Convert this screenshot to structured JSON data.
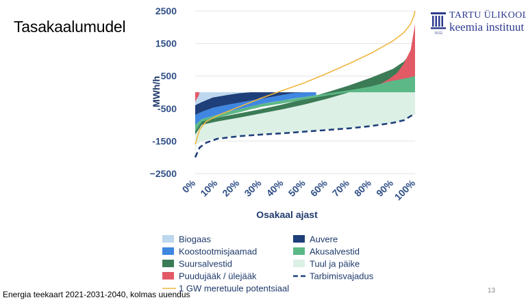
{
  "slide": {
    "title": "Tasakaalumudel",
    "footer_source": "Energia teekaart 2021-2031-2040, kolmas uuendus",
    "page_number": "13"
  },
  "logo": {
    "line1": "TARTU ÜLIKOOL",
    "line2": "keemia instituut",
    "year": "1632",
    "icon": "university-building-icon",
    "color": "#2d3a8c"
  },
  "chart_data": {
    "type": "area",
    "xlabel": "Osakaal ajast",
    "ylabel": "MWh/h",
    "ylim": [
      -2500,
      2500
    ],
    "xlim": [
      0,
      100
    ],
    "yticks": [
      2500,
      1500,
      500,
      -500,
      -1500,
      -2500
    ],
    "ytick_labels": [
      "2500",
      "1500",
      "500",
      "-500",
      "-1500",
      "−2500"
    ],
    "xticks": [
      0,
      10,
      20,
      30,
      40,
      50,
      60,
      70,
      80,
      90,
      100
    ],
    "xtick_labels": [
      "0%",
      "10%",
      "20%",
      "30%",
      "40%",
      "50%",
      "60%",
      "70%",
      "80%",
      "90%",
      "100%"
    ],
    "grid": "horizontal",
    "legend_position": "bottom",
    "legend": [
      {
        "key": "biogaas",
        "label": "Biogaas",
        "color": "#bdd7ee",
        "kind": "box"
      },
      {
        "key": "auvere",
        "label": "Auvere",
        "color": "#1f3f7a",
        "kind": "box"
      },
      {
        "key": "koostootmisjaamad",
        "label": "Koostootmisjaamad",
        "color": "#3f87e0",
        "kind": "box"
      },
      {
        "key": "akusalvestid",
        "label": "Akusalvestid",
        "color": "#5cb887",
        "kind": "box"
      },
      {
        "key": "suursalvestid",
        "label": "Suursalvestid",
        "color": "#3b7b55",
        "kind": "box"
      },
      {
        "key": "tuul_ja_paike",
        "label": "Tuul ja päike",
        "color": "#dcf0e6",
        "kind": "box"
      },
      {
        "key": "puudujaak",
        "label": "Puudujääk / ülejääk",
        "color": "#e25a66",
        "kind": "box"
      },
      {
        "key": "tarbimisvajadus",
        "label": "Tarbimisvajadus",
        "color": "#1f3f7a",
        "kind": "dash"
      },
      {
        "key": "meretuul",
        "label": "1 GW meretuule potentsiaal",
        "color": "#f0b640",
        "kind": "line"
      }
    ],
    "series": [
      {
        "key": "tuul_ja_paike",
        "name": "Tuul ja päike",
        "color": "#dcf0e6",
        "x": [
          0,
          0.5,
          3,
          10,
          20,
          30,
          40,
          50,
          60,
          70,
          80,
          90,
          95,
          100
        ],
        "upper": [
          -1300,
          -1000,
          -900,
          -780,
          -650,
          -520,
          -370,
          -200,
          0,
          0,
          0,
          0,
          0,
          0
        ],
        "lower": [
          -1900,
          -1600,
          -1500,
          -1410,
          -1340,
          -1290,
          -1250,
          -1200,
          -1150,
          -1100,
          -1030,
          -940,
          -860,
          -680
        ]
      },
      {
        "key": "suursalvestid",
        "name": "Suursalvestid",
        "color": "#3b7b55",
        "x": [
          0,
          3,
          10,
          20,
          30,
          40,
          50,
          60,
          70,
          80,
          90,
          95,
          98,
          100
        ],
        "upper": [
          -1200,
          -900,
          -780,
          -650,
          -520,
          -370,
          -200,
          0,
          210,
          450,
          720,
          950,
          1200,
          1800
        ],
        "lower": [
          -1300,
          -1000,
          -900,
          -780,
          -650,
          -520,
          -370,
          -200,
          0,
          0,
          0,
          0,
          0,
          0
        ]
      },
      {
        "key": "akusalvestid",
        "name": "Akusalvestid",
        "color": "#5cb887",
        "x": [
          0,
          3,
          8,
          15,
          20,
          25,
          30,
          40,
          50,
          60,
          70,
          76,
          80,
          84,
          86,
          88,
          90,
          92,
          95,
          100
        ],
        "upper": [
          -1000,
          -820,
          -730,
          -600,
          -520,
          -440,
          -360,
          -250,
          -140,
          -40,
          60,
          130,
          180,
          250,
          300,
          330,
          360,
          380,
          420,
          500
        ],
        "lower": [
          -1200,
          -900,
          -820,
          -700,
          -620,
          -530,
          -450,
          -340,
          -220,
          -100,
          0,
          0,
          0,
          0,
          0,
          0,
          0,
          0,
          0,
          0
        ]
      },
      {
        "key": "koostootmisjaamad",
        "name": "Koostootmisjaamad",
        "color": "#3f87e0",
        "x": [
          0,
          3,
          8,
          15,
          20,
          25,
          30,
          35,
          40,
          45,
          50,
          55
        ],
        "upper": [
          -700,
          -600,
          -480,
          -380,
          -320,
          -260,
          -200,
          -140,
          -80,
          -20,
          0,
          0
        ],
        "lower": [
          -1000,
          -820,
          -730,
          -600,
          -520,
          -440,
          -360,
          -300,
          -250,
          -190,
          -140,
          -90
        ]
      },
      {
        "key": "auvere",
        "name": "Auvere",
        "color": "#1f3f7a",
        "x": [
          0,
          3,
          8,
          15,
          20,
          25,
          30,
          35,
          40,
          45,
          50
        ],
        "upper": [
          -400,
          -300,
          -160,
          -80,
          -30,
          0,
          0,
          0,
          0,
          0,
          0
        ],
        "lower": [
          -700,
          -600,
          -480,
          -380,
          -320,
          -260,
          -200,
          -140,
          -80,
          -20,
          0
        ]
      },
      {
        "key": "biogaas",
        "name": "Biogaas",
        "color": "#bdd7ee",
        "x": [
          0,
          3,
          8,
          15,
          20,
          25,
          30,
          35,
          40,
          45,
          50
        ],
        "upper": [
          0,
          0,
          0,
          0,
          0,
          0,
          0,
          0,
          0,
          0,
          0
        ],
        "lower": [
          -400,
          -300,
          -160,
          -80,
          -30,
          0,
          0,
          0,
          0,
          0,
          0
        ]
      },
      {
        "key": "puudujaak_left",
        "name": "Puudujääk / ülejääk",
        "color": "#e25a66",
        "x": [
          0,
          0.5,
          1.5,
          2
        ],
        "upper": [
          0,
          0,
          0,
          0
        ],
        "lower": [
          -300,
          -220,
          -120,
          0
        ]
      },
      {
        "key": "puudujaak_right",
        "name": "Puudujääk / ülejääk",
        "color": "#e25a66",
        "x": [
          84,
          88,
          92,
          95,
          98,
          100
        ],
        "upper": [
          250,
          400,
          600,
          900,
          1300,
          2100
        ],
        "lower": [
          250,
          330,
          380,
          420,
          460,
          500
        ]
      }
    ],
    "lines": [
      {
        "key": "meretuul",
        "name": "1 GW meretuule potentsiaal",
        "color": "#f0b640",
        "style": "solid",
        "x": [
          0,
          2,
          5,
          10,
          20,
          30,
          40,
          50,
          60,
          70,
          80,
          90,
          95,
          98,
          99.5,
          100
        ],
        "y": [
          -1600,
          -1150,
          -900,
          -720,
          -450,
          -180,
          60,
          300,
          580,
          880,
          1200,
          1580,
          1840,
          2100,
          2350,
          2500
        ]
      },
      {
        "key": "tarbimisvajadus",
        "name": "Tarbimisvajadus",
        "color": "#1f3f7a",
        "style": "dashed",
        "x": [
          0,
          2,
          5,
          10,
          20,
          30,
          40,
          50,
          60,
          70,
          80,
          90,
          95,
          100
        ],
        "y": [
          -2000,
          -1700,
          -1550,
          -1430,
          -1350,
          -1300,
          -1260,
          -1210,
          -1160,
          -1110,
          -1040,
          -940,
          -860,
          -650
        ]
      }
    ]
  }
}
